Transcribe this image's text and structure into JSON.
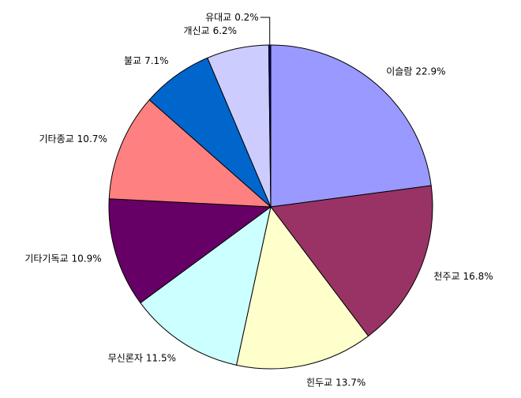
{
  "chart_data": {
    "type": "pie",
    "categories": [
      "이슬람",
      "천주교",
      "힌두교",
      "무신론자",
      "기타기독교",
      "기타종교",
      "불교",
      "개신교",
      "유대교"
    ],
    "values": [
      22.9,
      16.8,
      13.7,
      11.5,
      10.9,
      10.7,
      7.1,
      6.2,
      0.2
    ],
    "value_labels": [
      "22.9%",
      "16.8%",
      "13.7%",
      "11.5%",
      "10.9%",
      "10.7%",
      "7.1%",
      "6.2%",
      "0.2%"
    ],
    "colors": [
      "#9999ff",
      "#993366",
      "#ffffcc",
      "#ccffff",
      "#660066",
      "#ff8080",
      "#0066cc",
      "#ccccff",
      "#000080"
    ]
  }
}
